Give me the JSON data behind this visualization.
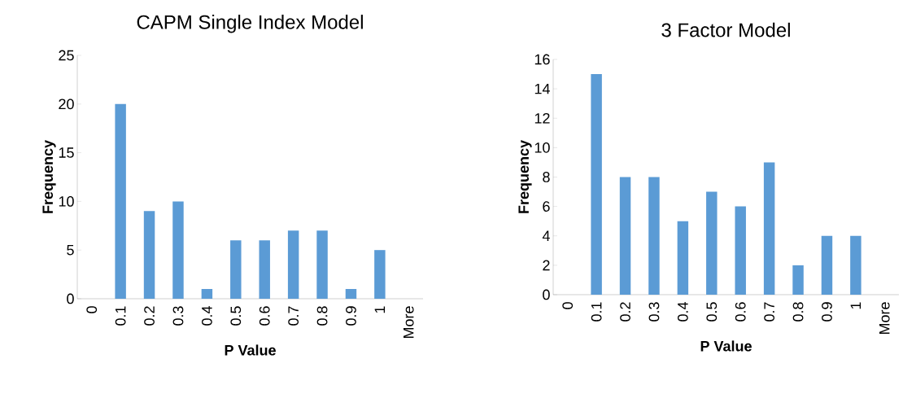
{
  "chart_data": [
    {
      "type": "bar",
      "title": "CAPM Single Index Model",
      "xlabel": "P Value",
      "ylabel": "Frequency",
      "categories": [
        "0",
        "0.1",
        "0.2",
        "0.3",
        "0.4",
        "0.5",
        "0.6",
        "0.7",
        "0.8",
        "0.9",
        "1",
        "More"
      ],
      "values": [
        0,
        20,
        9,
        10,
        1,
        6,
        6,
        7,
        7,
        1,
        5,
        0
      ],
      "color": "#5b9bd5",
      "ylim": [
        0,
        25
      ],
      "yticks": [
        0,
        5,
        10,
        15,
        20,
        25
      ]
    },
    {
      "type": "bar",
      "title": "3 Factor Model",
      "xlabel": "P Value",
      "ylabel": "Frequency",
      "categories": [
        "0",
        "0.1",
        "0.2",
        "0.3",
        "0.4",
        "0.5",
        "0.6",
        "0.7",
        "0.8",
        "0.9",
        "1",
        "More"
      ],
      "values": [
        0,
        15,
        8,
        8,
        5,
        7,
        6,
        9,
        2,
        4,
        4,
        0
      ],
      "color": "#5b9bd5",
      "ylim": [
        0,
        16
      ],
      "yticks": [
        0,
        2,
        4,
        6,
        8,
        10,
        12,
        14,
        16
      ]
    }
  ]
}
